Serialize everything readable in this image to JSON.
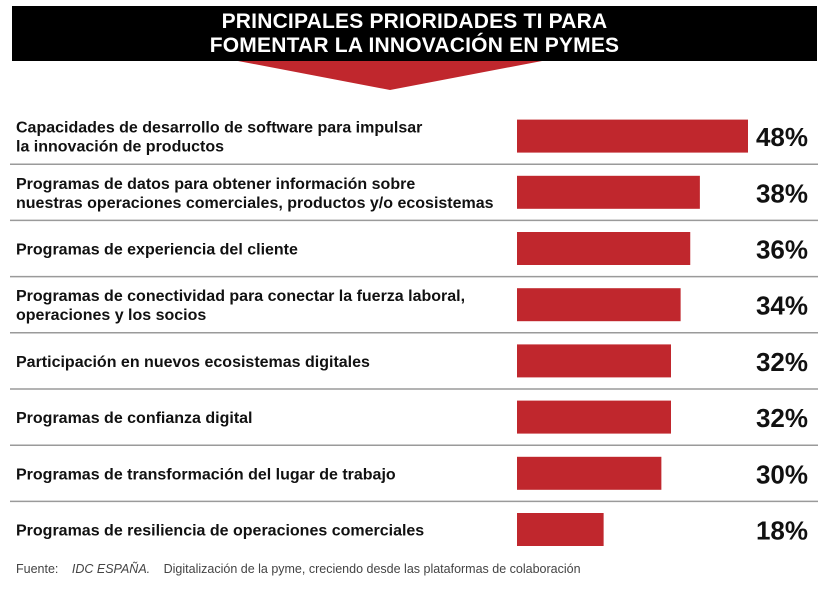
{
  "title": {
    "line1": "PRINCIPALES PRIORIDADES TI PARA",
    "line2": "FOMENTAR LA INNOVACIÓN EN PYMES"
  },
  "colors": {
    "bar": "#c0272d",
    "header_bg": "#000000",
    "divider": "#9a9a9a"
  },
  "chart_data": {
    "type": "bar",
    "orientation": "horizontal",
    "title": "PRINCIPALES PRIORIDADES TI PARA FOMENTAR LA INNOVACIÓN EN PYMES",
    "categories": [
      [
        "Capacidades de desarrollo de software para impulsar",
        "la innovación de productos"
      ],
      [
        "Programas de datos para obtener información sobre",
        "nuestras operaciones comerciales, productos y/o ecosistemas"
      ],
      [
        "Programas de experiencia del cliente"
      ],
      [
        "Programas de conectividad para conectar la fuerza laboral,",
        "operaciones y los socios"
      ],
      [
        "Participación en nuevos ecosistemas digitales"
      ],
      [
        "Programas de confianza digital"
      ],
      [
        "Programas de transformación del lugar de trabajo"
      ],
      [
        "Programas de resiliencia de operaciones comerciales"
      ]
    ],
    "values": [
      48,
      38,
      36,
      34,
      32,
      32,
      30,
      18
    ],
    "value_labels": [
      "48%",
      "38%",
      "36%",
      "34%",
      "32%",
      "32%",
      "30%",
      "18%"
    ],
    "unit": "%",
    "xlim": [
      0,
      48
    ],
    "grid": false,
    "legend": "none"
  },
  "source": {
    "label": "Fuente:",
    "org": "IDC ESPAÑA.",
    "text": "Digitalización de la pyme, creciendo desde las plataformas de colaboración"
  }
}
